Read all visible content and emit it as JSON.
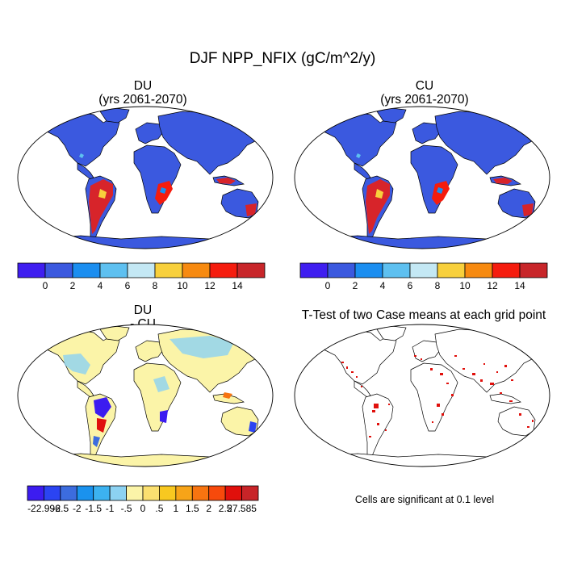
{
  "figure_title": "DJF NPP_NFIX (gC/m^2/y)",
  "chart_data": [
    {
      "type": "heatmap",
      "title": "DU",
      "subtitle": "(yrs 2061-2070)",
      "map": "world-robinson",
      "colorbar": {
        "colors": [
          "#3f1ef0",
          "#3b59df",
          "#1b8ef0",
          "#5ec0f0",
          "#c4e8f4",
          "#f8d03c",
          "#f78a10",
          "#f51c0e",
          "#c8262a"
        ],
        "tick_labels": [
          "0",
          "2",
          "4",
          "6",
          "8",
          "10",
          "12",
          "14"
        ]
      }
    },
    {
      "type": "heatmap",
      "title": "CU",
      "subtitle": "(yrs 2061-2070)",
      "map": "world-robinson",
      "colorbar": {
        "colors": [
          "#3f1ef0",
          "#3b59df",
          "#1b8ef0",
          "#5ec0f0",
          "#c4e8f4",
          "#f8d03c",
          "#f78a10",
          "#f51c0e",
          "#c8262a"
        ],
        "tick_labels": [
          "0",
          "2",
          "4",
          "6",
          "8",
          "10",
          "12",
          "14"
        ]
      }
    },
    {
      "type": "heatmap",
      "title": "DU",
      "subtitle": "- CU",
      "map": "world-robinson",
      "colorbar": {
        "colors": [
          "#3c1cf0",
          "#2b44f2",
          "#3c6cde",
          "#1a92ee",
          "#3cb2f0",
          "#8cd2f2",
          "#fbf4a8",
          "#fbe070",
          "#f8c820",
          "#f7a418",
          "#f77410",
          "#f74a0c",
          "#e0100c",
          "#c82428"
        ],
        "tick_labels": [
          "-22.996",
          "-2.5",
          "-2",
          "-1.5",
          "-1",
          "-.5",
          "0",
          ".5",
          "1",
          "1.5",
          "2",
          "2.5",
          "27.585"
        ]
      }
    },
    {
      "type": "heatmap",
      "title": "T-Test of two Case means at each grid point",
      "map": "world-robinson",
      "note": "Cells are significant at 0.1 level"
    }
  ]
}
